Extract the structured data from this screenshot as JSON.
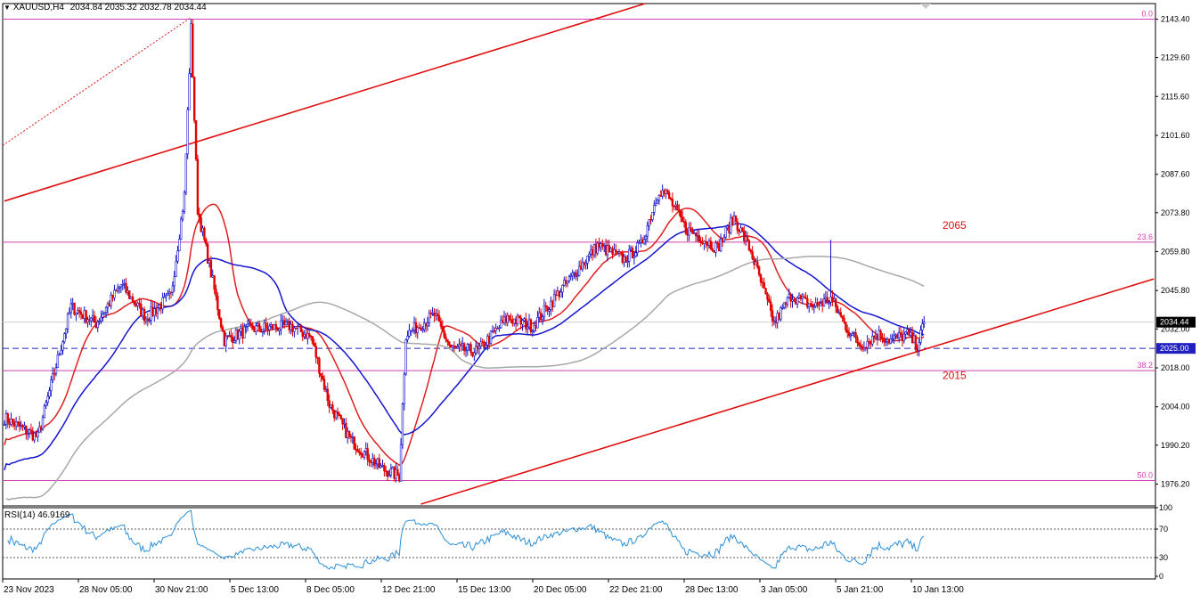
{
  "header": {
    "symbol": "XAUUSD,H4",
    "ohlc": "2034.84 2035.32 2032.78 2034.44"
  },
  "chart_data": [
    {
      "type": "candlestick",
      "symbol": "XAUUSD",
      "timeframe": "H4",
      "ylim": [
        1969,
        2149
      ],
      "yticks": [
        2143.4,
        2129.6,
        2115.6,
        2101.6,
        2087.6,
        2073.8,
        2059.8,
        2045.8,
        2032.0,
        2018.0,
        2004.0,
        1990.2,
        1976.2
      ],
      "ytick_labels": [
        "2143.40",
        "2129.60",
        "2115.60",
        "2101.60",
        "2087.60",
        "2073.80",
        "2059.80",
        "2045.80",
        "2032.00",
        "2018.00",
        "2004.00",
        "1990.20",
        "1976.20"
      ],
      "xticks": [
        "23 Nov 2023",
        "28 Nov 05:00",
        "30 Nov 21:00",
        "5 Dec 13:00",
        "8 Dec 05:00",
        "12 Dec 21:00",
        "15 Dec 13:00",
        "20 Dec 05:00",
        "22 Dec 21:00",
        "28 Dec 13:00",
        "3 Jan 05:00",
        "5 Jan 21:00",
        "10 Jan 13:00"
      ],
      "anchors": [
        [
          0,
          2000
        ],
        [
          20,
          1993
        ],
        [
          40,
          2040
        ],
        [
          55,
          2034
        ],
        [
          70,
          2048
        ],
        [
          85,
          2036
        ],
        [
          100,
          2044
        ],
        [
          108,
          2080
        ],
        [
          112,
          2140
        ],
        [
          116,
          2075
        ],
        [
          124,
          2052
        ],
        [
          132,
          2028
        ],
        [
          148,
          2032
        ],
        [
          172,
          2033
        ],
        [
          184,
          2029
        ],
        [
          195,
          2005
        ],
        [
          208,
          1992
        ],
        [
          226,
          1982
        ],
        [
          237,
          1979
        ],
        [
          241,
          2030
        ],
        [
          258,
          2037
        ],
        [
          268,
          2025
        ],
        [
          284,
          2024
        ],
        [
          302,
          2036
        ],
        [
          317,
          2033
        ],
        [
          334,
          2046
        ],
        [
          356,
          2062
        ],
        [
          372,
          2057
        ],
        [
          382,
          2062
        ],
        [
          393,
          2082
        ],
        [
          398,
          2080
        ],
        [
          409,
          2068
        ],
        [
          418,
          2065
        ],
        [
          428,
          2061
        ],
        [
          438,
          2072
        ],
        [
          448,
          2060
        ],
        [
          462,
          2034
        ],
        [
          472,
          2044
        ],
        [
          486,
          2040
        ],
        [
          496,
          2043
        ],
        [
          506,
          2032
        ],
        [
          514,
          2026
        ],
        [
          524,
          2030
        ],
        [
          532,
          2028
        ],
        [
          542,
          2030
        ],
        [
          548,
          2026
        ],
        [
          552,
          2034
        ]
      ],
      "price_levels": [
        {
          "price": 2143.4,
          "label": "0.0"
        },
        {
          "price": 2063.2,
          "label": "23.6"
        },
        {
          "price": 2017.0,
          "label": "38.2"
        },
        {
          "price": 1977.5,
          "label": "50.0"
        }
      ],
      "support_resistance": [
        {
          "price": 2025.0,
          "label": "2025.00"
        }
      ],
      "current_price": 2034.44,
      "annotations": [
        {
          "text": "2065",
          "price": 2068
        },
        {
          "text": "2015",
          "price": 2014
        }
      ],
      "moving_averages": [
        {
          "color": "#e02020",
          "period_bars": 25
        },
        {
          "color": "#1515d0",
          "period_bars": 55
        },
        {
          "color": "#a8a8a8",
          "period_bars": 160
        }
      ],
      "channel": {
        "upper": [
          [
            0,
            2078
          ],
          [
            390,
            2150
          ]
        ],
        "lower": [
          [
            250,
            1969
          ],
          [
            690,
            2050
          ]
        ]
      }
    },
    {
      "type": "line",
      "indicator": "RSI(14)",
      "label": "RSI(14) 46.9169",
      "ylim": [
        0,
        100
      ],
      "levels": [
        70,
        30
      ],
      "ytick_labels": [
        "100",
        "70",
        "30",
        "0"
      ]
    }
  ],
  "colors": {
    "bull": "#1010c8",
    "bear": "#e00000",
    "fib": "#d040b0",
    "channel": "#e01010",
    "level": "#2020c0",
    "rsi": "#2a8fd8"
  }
}
